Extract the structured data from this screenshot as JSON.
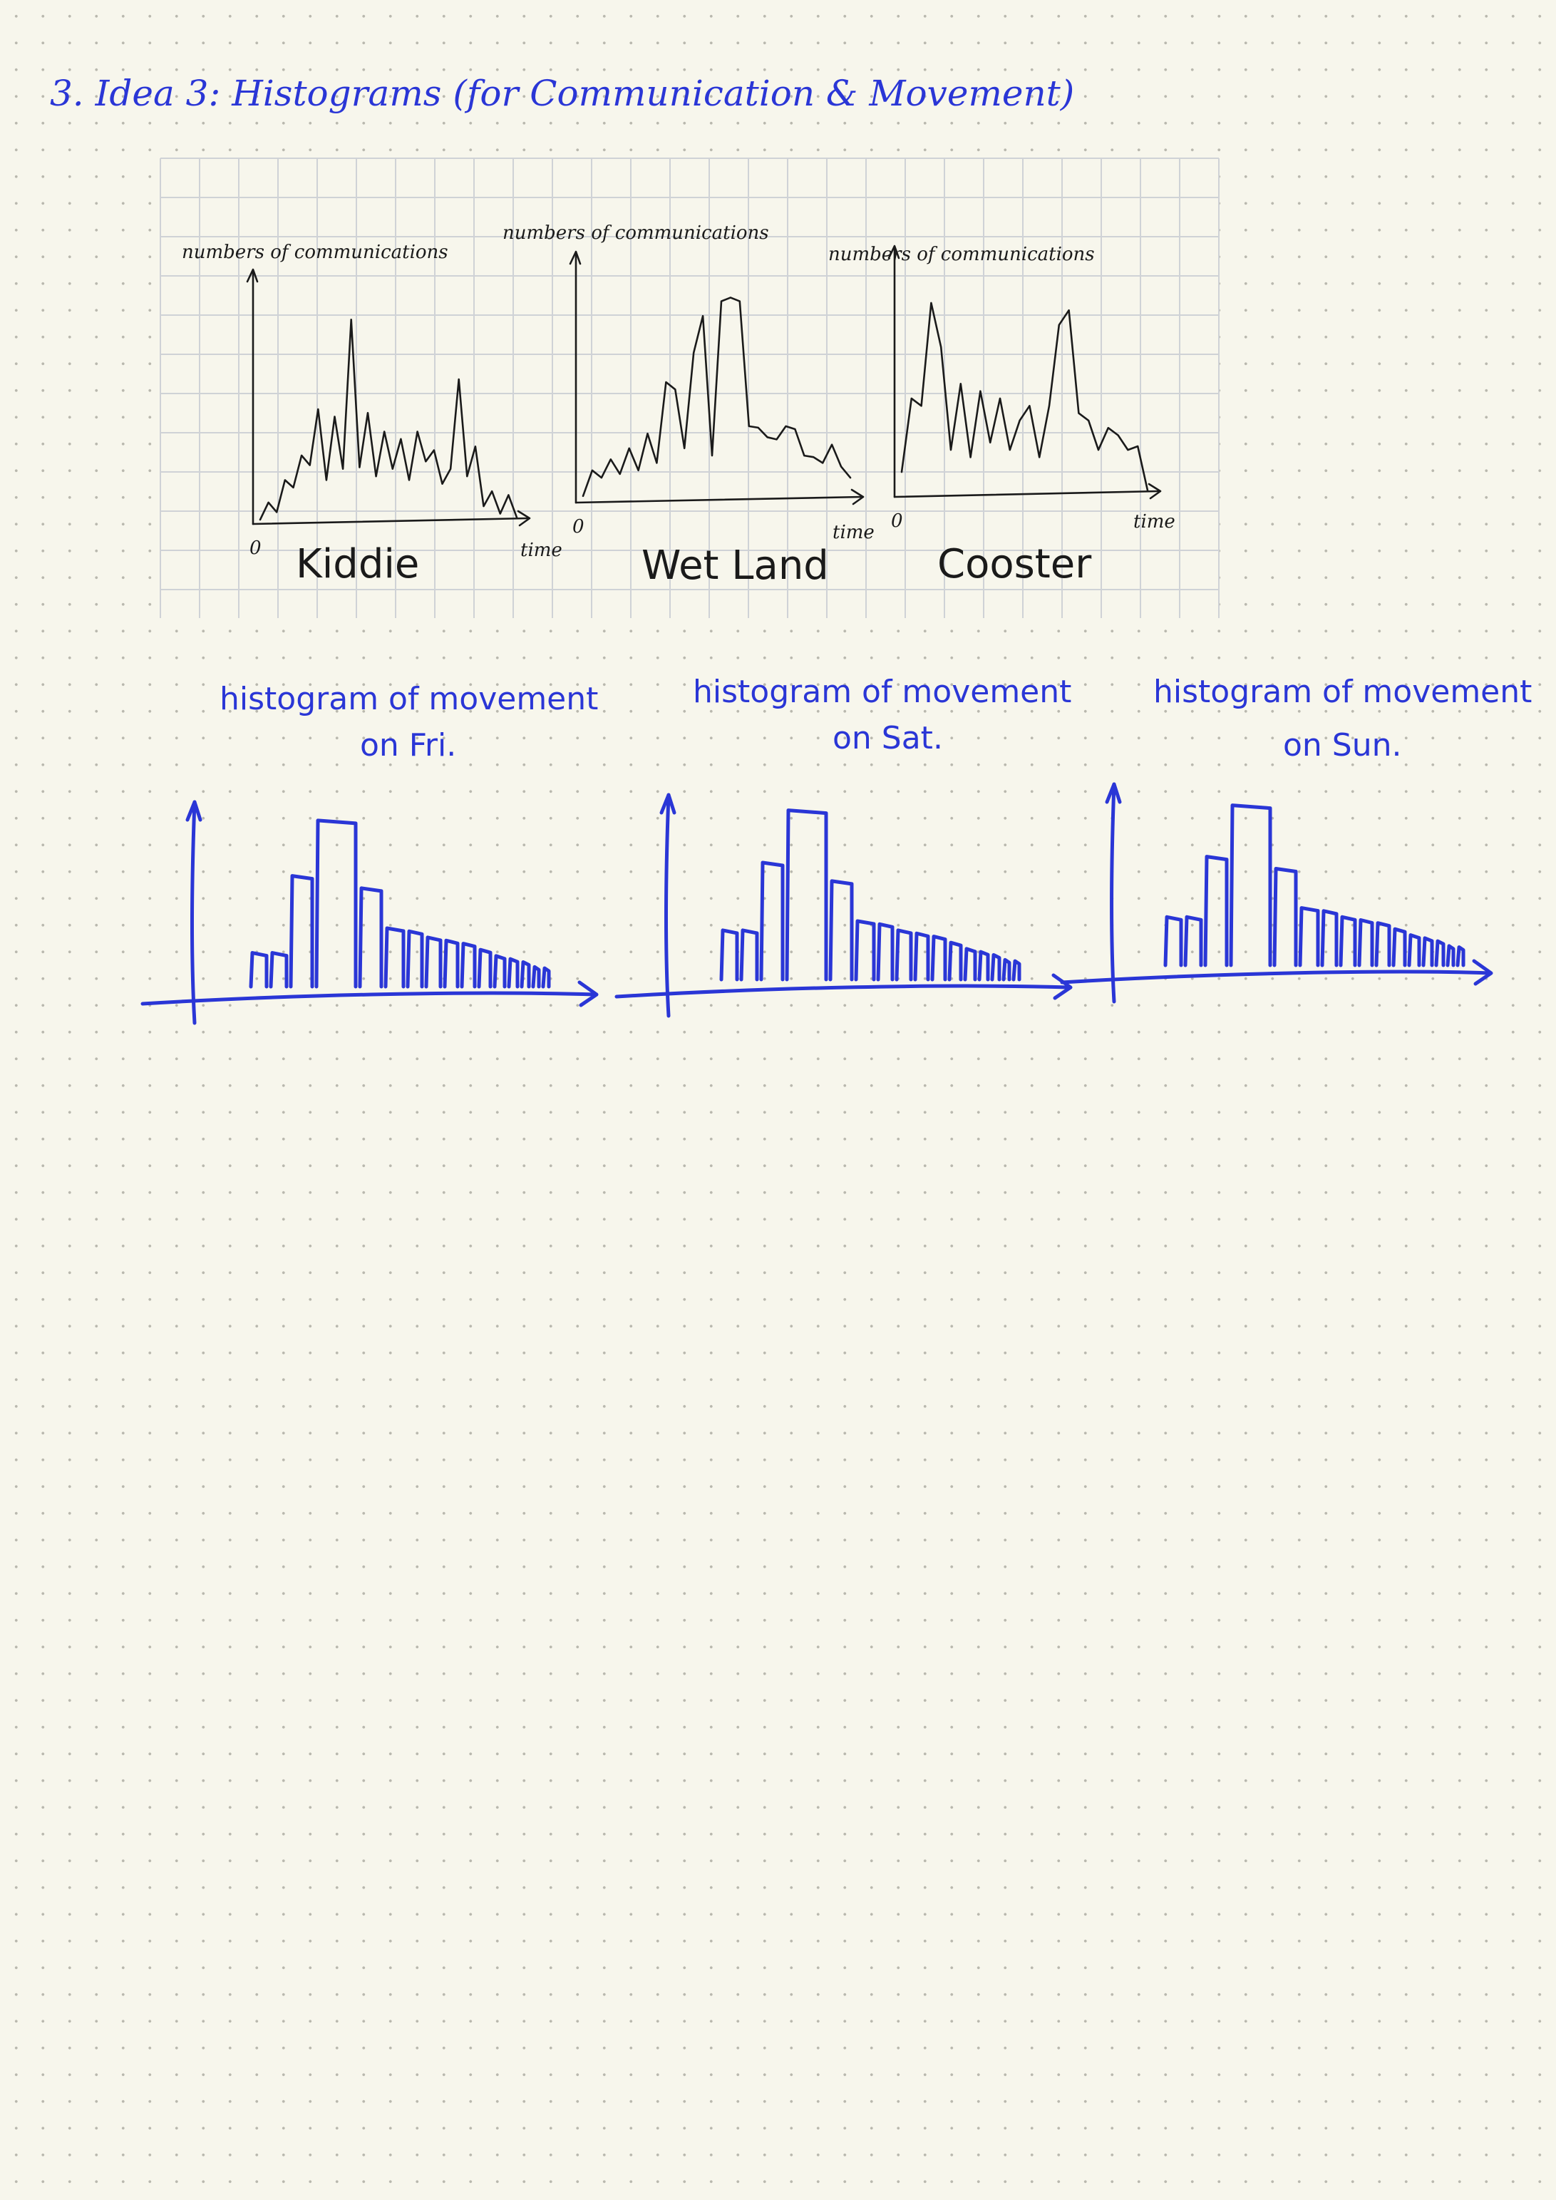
{
  "heading": "3. Idea 3: Histograms (for Communication & Movement)",
  "communication": {
    "y_label": "numbers of communications",
    "x_label": "time",
    "origin_label": "0",
    "charts": [
      {
        "name": "Kiddie"
      },
      {
        "name": "Wet Land"
      },
      {
        "name": "Cooster"
      }
    ]
  },
  "movement": {
    "caption_line1": "histogram of movement",
    "histograms": [
      {
        "caption_line2": "on Fri."
      },
      {
        "caption_line2": "on Sat."
      },
      {
        "caption_line2": "on Sun."
      }
    ]
  },
  "colors": {
    "paper": "#f7f6ec",
    "blue_ink": "#2a36d6",
    "black_ink": "#1a1a1a",
    "grid": "#cfd2d6"
  },
  "chart_data": [
    {
      "type": "line",
      "title": "Kiddie",
      "ylabel": "numbers of communications",
      "xlabel": "time",
      "x": [
        0,
        1,
        2,
        3,
        4,
        5,
        6,
        7,
        8,
        9,
        10,
        11,
        12,
        13,
        14,
        15,
        16,
        17,
        18,
        19,
        20,
        21,
        22,
        23,
        24,
        25,
        26,
        27,
        28,
        29,
        30,
        31
      ],
      "y": [
        2,
        25,
        12,
        55,
        45,
        88,
        75,
        150,
        55,
        140,
        70,
        270,
        72,
        145,
        60,
        120,
        70,
        110,
        55,
        120,
        80,
        95,
        50,
        70,
        190,
        60,
        100,
        20,
        40,
        10,
        35,
        5
      ],
      "ylim": [
        0,
        320
      ]
    },
    {
      "type": "line",
      "title": "Wet Land",
      "ylabel": "numbers of communications",
      "xlabel": "time",
      "x": [
        0,
        1,
        2,
        3,
        4,
        5,
        6,
        7,
        8,
        9,
        10,
        11,
        12,
        13,
        14,
        15,
        16,
        17,
        18,
        19,
        20,
        21,
        22,
        23,
        24,
        25,
        26,
        27,
        28,
        29
      ],
      "y": [
        5,
        40,
        30,
        55,
        35,
        70,
        40,
        90,
        50,
        160,
        150,
        70,
        200,
        250,
        60,
        270,
        275,
        270,
        100,
        98,
        85,
        82,
        100,
        96,
        60,
        58,
        50,
        75,
        45,
        30
      ],
      "ylim": [
        0,
        320
      ]
    },
    {
      "type": "line",
      "title": "Cooster",
      "ylabel": "numbers of communications",
      "xlabel": "time",
      "x": [
        0,
        1,
        2,
        3,
        4,
        5,
        6,
        7,
        8,
        9,
        10,
        11,
        12,
        13,
        14,
        15,
        16,
        17,
        18,
        19,
        20,
        21,
        22,
        23,
        24,
        25
      ],
      "y": [
        30,
        130,
        120,
        260,
        200,
        60,
        150,
        50,
        140,
        70,
        130,
        60,
        100,
        120,
        50,
        120,
        230,
        250,
        110,
        100,
        60,
        90,
        80,
        60,
        65,
        5
      ],
      "ylim": [
        0,
        320
      ]
    },
    {
      "type": "bar",
      "title": "histogram of movement on Fri.",
      "values": [
        55,
        55,
        180,
        270,
        160,
        95,
        90,
        80,
        75,
        70,
        60,
        50,
        45,
        40,
        32,
        30
      ],
      "ylim": [
        0,
        300
      ]
    },
    {
      "type": "bar",
      "title": "histogram of movement on Sat.",
      "values": [
        80,
        80,
        190,
        275,
        160,
        95,
        90,
        80,
        75,
        70,
        60,
        50,
        45,
        40,
        32,
        30
      ],
      "ylim": [
        0,
        300
      ]
    },
    {
      "type": "bar",
      "title": "histogram of movement on Sun.",
      "values": [
        80,
        80,
        180,
        265,
        160,
        95,
        90,
        80,
        75,
        70,
        60,
        50,
        45,
        40,
        32,
        30
      ],
      "ylim": [
        0,
        300
      ]
    }
  ]
}
